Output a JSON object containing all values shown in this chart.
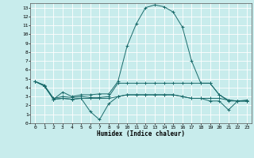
{
  "xlabel": "Humidex (Indice chaleur)",
  "xlim": [
    -0.5,
    23.5
  ],
  "ylim": [
    0,
    13.5
  ],
  "xticks": [
    0,
    1,
    2,
    3,
    4,
    5,
    6,
    7,
    8,
    9,
    10,
    11,
    12,
    13,
    14,
    15,
    16,
    17,
    18,
    19,
    20,
    21,
    22,
    23
  ],
  "yticks": [
    0,
    1,
    2,
    3,
    4,
    5,
    6,
    7,
    8,
    9,
    10,
    11,
    12,
    13
  ],
  "bg_color": "#c8ecec",
  "grid_color": "#ffffff",
  "line_color": "#1a6b6b",
  "lines": [
    {
      "x": [
        0,
        1,
        2,
        3,
        4,
        5,
        6,
        7,
        8,
        9,
        10,
        11,
        12,
        13,
        14,
        15,
        16,
        17,
        18,
        19,
        20,
        21,
        22,
        23
      ],
      "y": [
        4.7,
        4.2,
        2.7,
        3.5,
        3.0,
        3.2,
        3.2,
        3.3,
        3.3,
        4.7,
        8.7,
        11.2,
        13.0,
        13.3,
        13.1,
        12.5,
        10.8,
        7.0,
        4.5,
        4.5,
        3.2,
        2.6,
        2.5,
        2.6
      ]
    },
    {
      "x": [
        0,
        1,
        2,
        3,
        4,
        5,
        6,
        7,
        8,
        9,
        10,
        11,
        12,
        13,
        14,
        15,
        16,
        17,
        18,
        19,
        20,
        21,
        22,
        23
      ],
      "y": [
        4.7,
        4.3,
        2.8,
        3.0,
        2.9,
        3.0,
        2.9,
        2.9,
        3.0,
        4.5,
        4.5,
        4.5,
        4.5,
        4.5,
        4.5,
        4.5,
        4.5,
        4.5,
        4.5,
        4.5,
        3.2,
        2.5,
        2.5,
        2.5
      ]
    },
    {
      "x": [
        0,
        1,
        2,
        3,
        4,
        5,
        6,
        7,
        8,
        9,
        10,
        11,
        12,
        13,
        14,
        15,
        16,
        17,
        18,
        19,
        20,
        21,
        22,
        23
      ],
      "y": [
        4.7,
        4.2,
        2.7,
        2.8,
        2.7,
        2.8,
        1.3,
        0.4,
        2.2,
        3.0,
        3.2,
        3.2,
        3.2,
        3.2,
        3.2,
        3.2,
        3.0,
        2.8,
        2.8,
        2.5,
        2.5,
        1.5,
        2.5,
        2.5
      ]
    },
    {
      "x": [
        0,
        1,
        2,
        3,
        4,
        5,
        6,
        7,
        8,
        9,
        10,
        11,
        12,
        13,
        14,
        15,
        16,
        17,
        18,
        19,
        20,
        21,
        22,
        23
      ],
      "y": [
        4.7,
        4.2,
        2.7,
        2.8,
        2.7,
        2.8,
        2.8,
        2.8,
        2.8,
        3.0,
        3.2,
        3.2,
        3.2,
        3.2,
        3.2,
        3.2,
        3.0,
        2.8,
        2.8,
        2.8,
        2.8,
        2.6,
        2.5,
        2.5
      ]
    }
  ]
}
